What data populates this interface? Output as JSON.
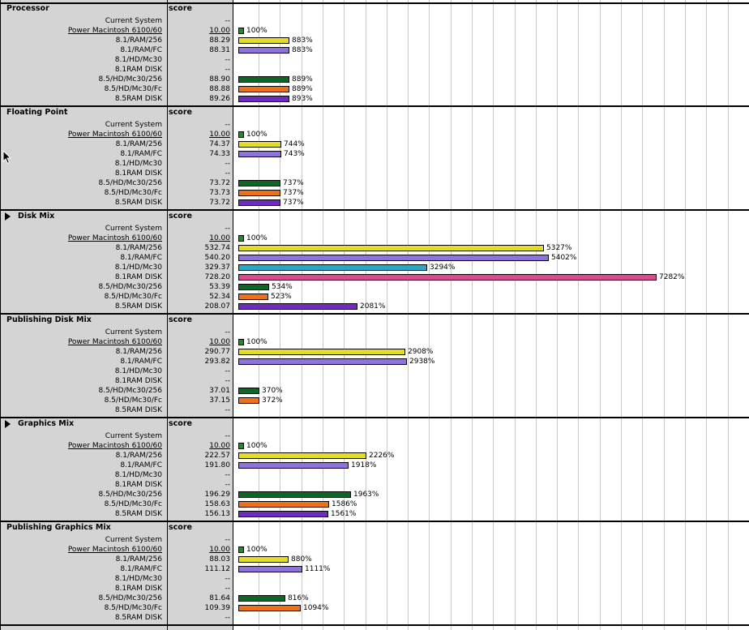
{
  "colors": {
    "panel_bg": "#d4d4d4",
    "gridline": "#c8c8c8",
    "series": {
      "green": "#1f9a1f",
      "yellow": "#f7ef2a",
      "lavender": "#9a7bf0",
      "cyan": "#2ab7d6",
      "pink": "#ef4f9b",
      "darkgreen": "#0f6e2b",
      "orange": "#ff7a1a",
      "purple": "#7a2fd0"
    }
  },
  "score_header": "score",
  "sections": [
    {
      "title": "Processor",
      "arrow": false,
      "rows": [
        {
          "label": "Current System",
          "score": "--",
          "pct": "",
          "value": 0,
          "color": ""
        },
        {
          "label": "Power Macintosh 6100/60",
          "score": "10.00",
          "pct": "100%",
          "value": 100,
          "color": "green",
          "underline": true
        },
        {
          "label": "8.1/RAM/256",
          "score": "88.29",
          "pct": "883%",
          "value": 883,
          "color": "yellow"
        },
        {
          "label": "8.1/RAM/FC",
          "score": "88.31",
          "pct": "883%",
          "value": 883,
          "color": "lavender"
        },
        {
          "label": "8.1/HD/Mc30",
          "score": "--",
          "pct": "",
          "value": 0,
          "color": ""
        },
        {
          "label": "8.1RAM DISK",
          "score": "--",
          "pct": "",
          "value": 0,
          "color": ""
        },
        {
          "label": "8.5/HD/Mc30/256",
          "score": "88.90",
          "pct": "889%",
          "value": 889,
          "color": "darkgreen"
        },
        {
          "label": "8.5/HD/Mc30/Fc",
          "score": "88.88",
          "pct": "889%",
          "value": 889,
          "color": "orange"
        },
        {
          "label": "8.5RAM DISK",
          "score": "89.26",
          "pct": "893%",
          "value": 893,
          "color": "purple"
        }
      ]
    },
    {
      "title": "Floating Point",
      "arrow": false,
      "rows": [
        {
          "label": "Current System",
          "score": "--",
          "pct": "",
          "value": 0,
          "color": ""
        },
        {
          "label": "Power Macintosh 6100/60",
          "score": "10.00",
          "pct": "100%",
          "value": 100,
          "color": "green",
          "underline": true
        },
        {
          "label": "8.1/RAM/256",
          "score": "74.37",
          "pct": "744%",
          "value": 744,
          "color": "yellow"
        },
        {
          "label": "8.1/RAM/FC",
          "score": "74.33",
          "pct": "743%",
          "value": 743,
          "color": "lavender"
        },
        {
          "label": "8.1/HD/Mc30",
          "score": "--",
          "pct": "",
          "value": 0,
          "color": ""
        },
        {
          "label": "8.1RAM DISK",
          "score": "--",
          "pct": "",
          "value": 0,
          "color": ""
        },
        {
          "label": "8.5/HD/Mc30/256",
          "score": "73.72",
          "pct": "737%",
          "value": 737,
          "color": "darkgreen"
        },
        {
          "label": "8.5/HD/Mc30/Fc",
          "score": "73.73",
          "pct": "737%",
          "value": 737,
          "color": "orange"
        },
        {
          "label": "8.5RAM DISK",
          "score": "73.72",
          "pct": "737%",
          "value": 737,
          "color": "purple"
        }
      ]
    },
    {
      "title": "Disk Mix",
      "arrow": true,
      "rows": [
        {
          "label": "Current System",
          "score": "--",
          "pct": "",
          "value": 0,
          "color": ""
        },
        {
          "label": "Power Macintosh 6100/60",
          "score": "10.00",
          "pct": "100%",
          "value": 100,
          "color": "green",
          "underline": true
        },
        {
          "label": "8.1/RAM/256",
          "score": "532.74",
          "pct": "5327%",
          "value": 5327,
          "color": "yellow"
        },
        {
          "label": "8.1/RAM/FC",
          "score": "540.20",
          "pct": "5402%",
          "value": 5402,
          "color": "lavender"
        },
        {
          "label": "8.1/HD/Mc30",
          "score": "329.37",
          "pct": "3294%",
          "value": 3294,
          "color": "cyan"
        },
        {
          "label": "8.1RAM DISK",
          "score": "728.20",
          "pct": "7282%",
          "value": 7282,
          "color": "pink"
        },
        {
          "label": "8.5/HD/Mc30/256",
          "score": "53.39",
          "pct": "534%",
          "value": 534,
          "color": "darkgreen"
        },
        {
          "label": "8.5/HD/Mc30/Fc",
          "score": "52.34",
          "pct": "523%",
          "value": 523,
          "color": "orange"
        },
        {
          "label": "8.5RAM DISK",
          "score": "208.07",
          "pct": "2081%",
          "value": 2081,
          "color": "purple"
        }
      ]
    },
    {
      "title": "Publishing Disk Mix",
      "arrow": false,
      "rows": [
        {
          "label": "Current System",
          "score": "--",
          "pct": "",
          "value": 0,
          "color": ""
        },
        {
          "label": "Power Macintosh 6100/60",
          "score": "10.00",
          "pct": "100%",
          "value": 100,
          "color": "green",
          "underline": true
        },
        {
          "label": "8.1/RAM/256",
          "score": "290.77",
          "pct": "2908%",
          "value": 2908,
          "color": "yellow"
        },
        {
          "label": "8.1/RAM/FC",
          "score": "293.82",
          "pct": "2938%",
          "value": 2938,
          "color": "lavender"
        },
        {
          "label": "8.1/HD/Mc30",
          "score": "--",
          "pct": "",
          "value": 0,
          "color": ""
        },
        {
          "label": "8.1RAM DISK",
          "score": "--",
          "pct": "",
          "value": 0,
          "color": ""
        },
        {
          "label": "8.5/HD/Mc30/256",
          "score": "37.01",
          "pct": "370%",
          "value": 370,
          "color": "darkgreen"
        },
        {
          "label": "8.5/HD/Mc30/Fc",
          "score": "37.15",
          "pct": "372%",
          "value": 372,
          "color": "orange"
        },
        {
          "label": "8.5RAM DISK",
          "score": "--",
          "pct": "",
          "value": 0,
          "color": ""
        }
      ]
    },
    {
      "title": "Graphics Mix",
      "arrow": true,
      "rows": [
        {
          "label": "Current System",
          "score": "--",
          "pct": "",
          "value": 0,
          "color": ""
        },
        {
          "label": "Power Macintosh 6100/60",
          "score": "10.00",
          "pct": "100%",
          "value": 100,
          "color": "green",
          "underline": true
        },
        {
          "label": "8.1/RAM/256",
          "score": "222.57",
          "pct": "2226%",
          "value": 2226,
          "color": "yellow"
        },
        {
          "label": "8.1/RAM/FC",
          "score": "191.80",
          "pct": "1918%",
          "value": 1918,
          "color": "lavender"
        },
        {
          "label": "8.1/HD/Mc30",
          "score": "--",
          "pct": "",
          "value": 0,
          "color": ""
        },
        {
          "label": "8.1RAM DISK",
          "score": "--",
          "pct": "",
          "value": 0,
          "color": ""
        },
        {
          "label": "8.5/HD/Mc30/256",
          "score": "196.29",
          "pct": "1963%",
          "value": 1963,
          "color": "darkgreen"
        },
        {
          "label": "8.5/HD/Mc30/Fc",
          "score": "158.63",
          "pct": "1586%",
          "value": 1586,
          "color": "orange"
        },
        {
          "label": "8.5RAM DISK",
          "score": "156.13",
          "pct": "1561%",
          "value": 1561,
          "color": "purple"
        }
      ]
    },
    {
      "title": "Publishing Graphics Mix",
      "arrow": false,
      "rows": [
        {
          "label": "Current System",
          "score": "--",
          "pct": "",
          "value": 0,
          "color": ""
        },
        {
          "label": "Power Macintosh 6100/60",
          "score": "10.00",
          "pct": "100%",
          "value": 100,
          "color": "green",
          "underline": true
        },
        {
          "label": "8.1/RAM/256",
          "score": "88.03",
          "pct": "880%",
          "value": 880,
          "color": "yellow"
        },
        {
          "label": "8.1/RAM/FC",
          "score": "111.12",
          "pct": "1111%",
          "value": 1111,
          "color": "lavender"
        },
        {
          "label": "8.1/HD/Mc30",
          "score": "--",
          "pct": "",
          "value": 0,
          "color": ""
        },
        {
          "label": "8.1RAM DISK",
          "score": "--",
          "pct": "",
          "value": 0,
          "color": ""
        },
        {
          "label": "8.5/HD/Mc30/256",
          "score": "81.64",
          "pct": "816%",
          "value": 816,
          "color": "darkgreen"
        },
        {
          "label": "8.5/HD/Mc30/Fc",
          "score": "109.39",
          "pct": "1094%",
          "value": 1094,
          "color": "orange"
        },
        {
          "label": "8.5RAM DISK",
          "score": "--",
          "pct": "",
          "value": 0,
          "color": ""
        }
      ]
    }
  ]
}
